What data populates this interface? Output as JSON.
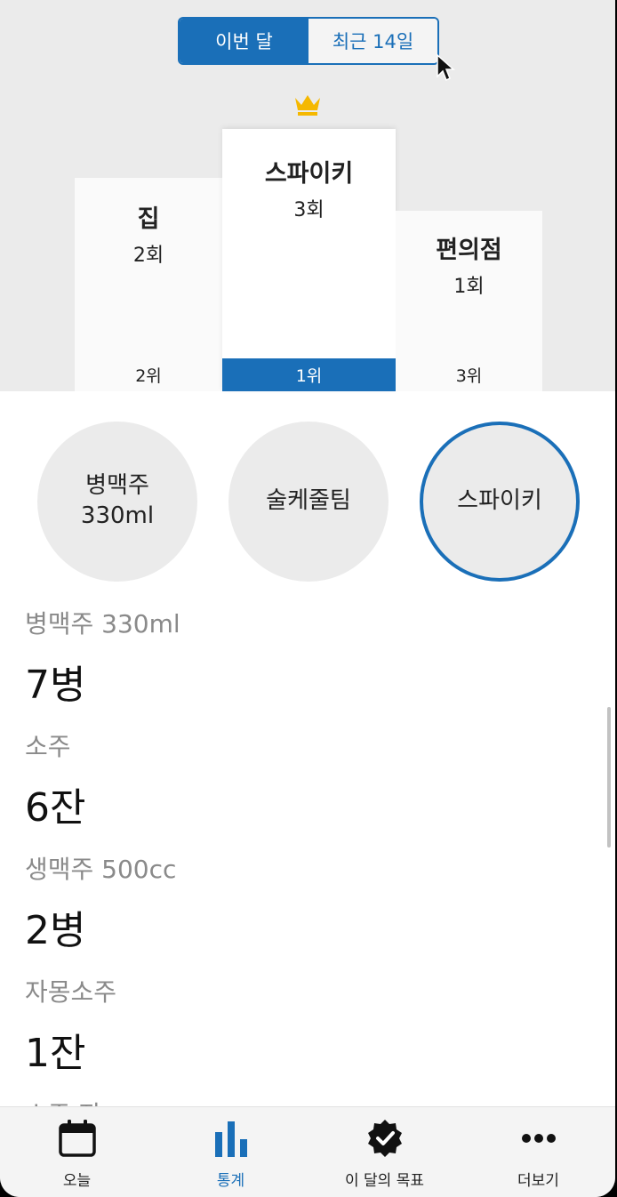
{
  "period_toggle": {
    "this_month": "이번 달",
    "recent_14": "최근 14일",
    "selected": "this_month"
  },
  "podium": {
    "first": {
      "place": "스파이키",
      "count": "3회",
      "rank": "1위"
    },
    "second": {
      "place": "집",
      "count": "2회",
      "rank": "2위"
    },
    "third": {
      "place": "편의점",
      "count": "1회",
      "rank": "3위"
    }
  },
  "drinks": [
    {
      "line1": "병맥주",
      "line2": "330ml"
    },
    {
      "line1": "술케줄팀"
    },
    {
      "line1": "스파이키",
      "selected": true
    }
  ],
  "consumption": [
    {
      "label": "병맥주 330ml",
      "value": "7병"
    },
    {
      "label": "소주",
      "value": "6잔"
    },
    {
      "label": "생맥주 500cc",
      "value": "2병"
    },
    {
      "label": "자몽소주",
      "value": "1잔"
    },
    {
      "label": "소주 잔"
    }
  ],
  "tabbar": {
    "today": "오늘",
    "stats": "통계",
    "goal": "이 달의 목표",
    "more": "더보기",
    "active": "stats"
  },
  "colors": {
    "accent": "#1a6fb8",
    "crown": "#f5b800"
  }
}
